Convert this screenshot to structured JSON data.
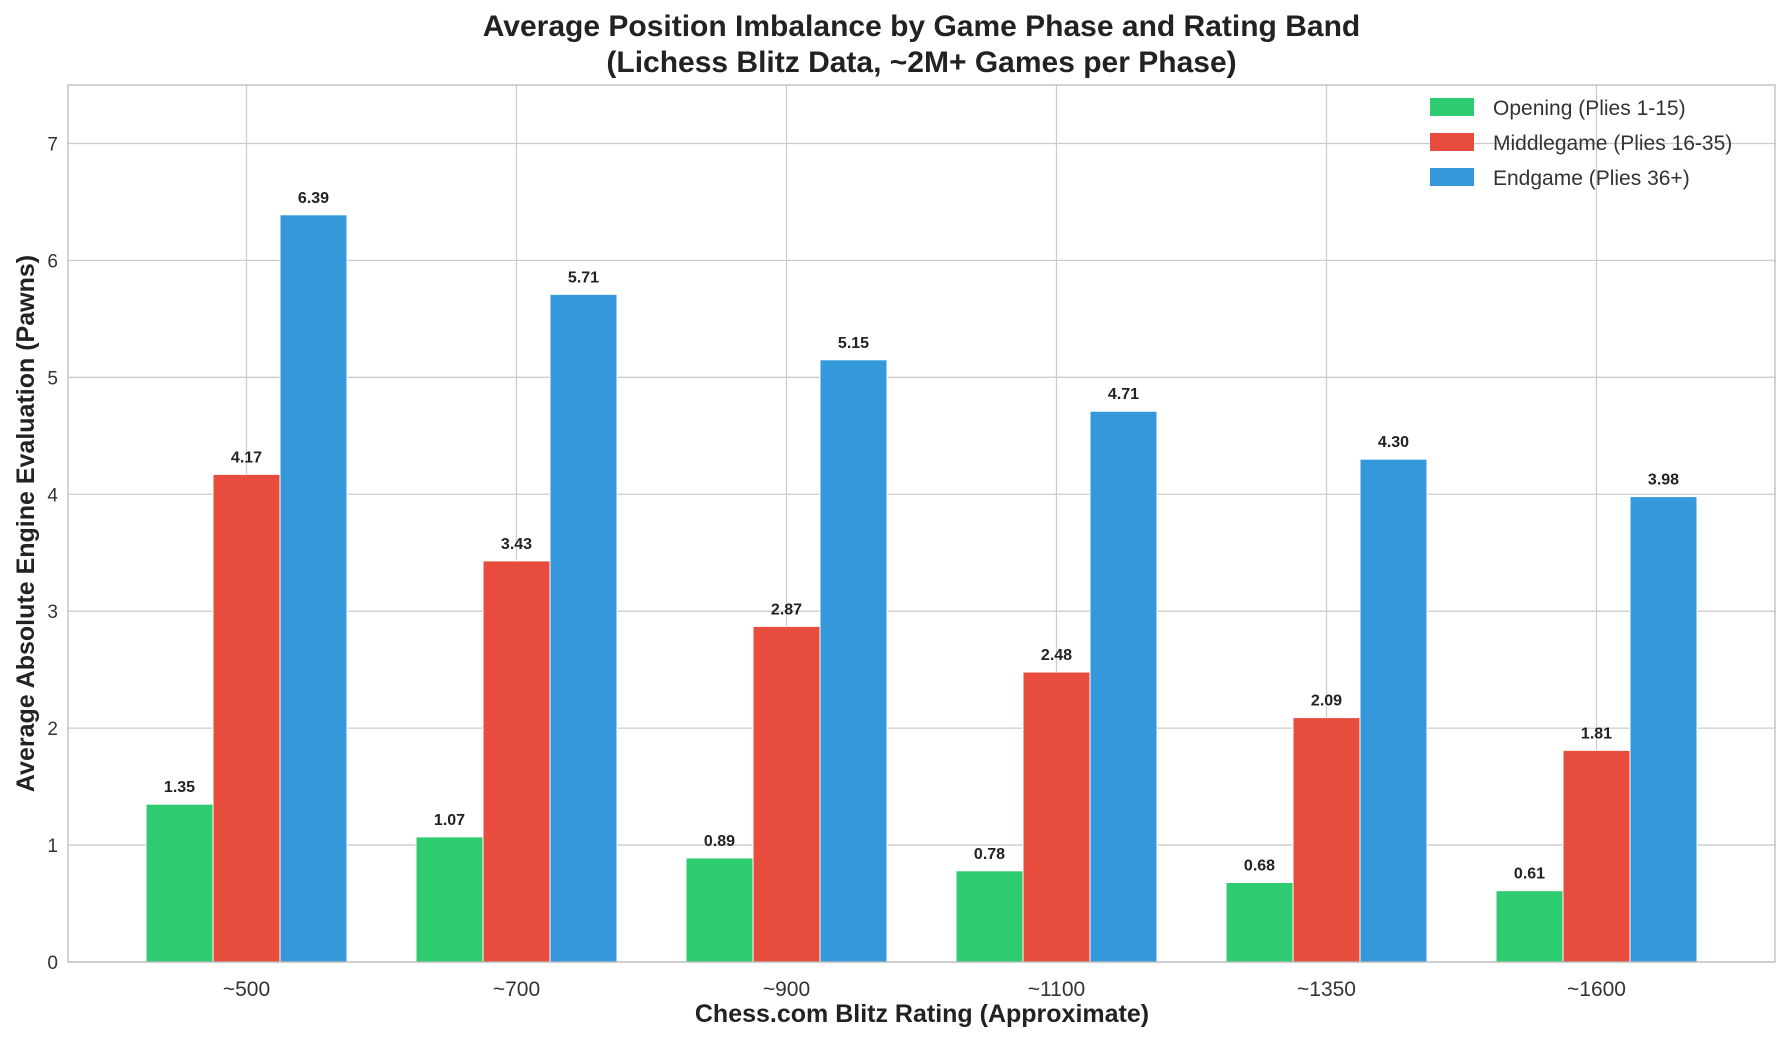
{
  "chart_data": {
    "type": "bar",
    "title": "Average Position Imbalance by Game Phase and Rating Band",
    "subtitle": "(Lichess Blitz Data, ~2M+ Games per Phase)",
    "xlabel": "Chess.com Blitz Rating (Approximate)",
    "ylabel": "Average Absolute Engine Evaluation (Pawns)",
    "categories": [
      "~500",
      "~700",
      "~900",
      "~1100",
      "~1350",
      "~1600"
    ],
    "ylim": [
      0,
      7.5
    ],
    "yticks": [
      0,
      1,
      2,
      3,
      4,
      5,
      6,
      7
    ],
    "grid": true,
    "legend_position": "top-right",
    "series": [
      {
        "name": "Opening (Plies 1-15)",
        "color": "#2ecc71",
        "values": [
          1.35,
          1.07,
          0.89,
          0.78,
          0.68,
          0.61
        ],
        "labels": [
          "1.35",
          "1.07",
          "0.89",
          "0.78",
          "0.68",
          "0.61"
        ]
      },
      {
        "name": "Middlegame (Plies 16-35)",
        "color": "#e74c3c",
        "values": [
          4.17,
          3.43,
          2.87,
          2.48,
          2.09,
          1.81
        ],
        "labels": [
          "4.17",
          "3.43",
          "2.87",
          "2.48",
          "2.09",
          "1.81"
        ]
      },
      {
        "name": "Endgame (Plies 36+)",
        "color": "#3498db",
        "values": [
          6.39,
          5.71,
          5.15,
          4.71,
          4.3,
          3.98
        ],
        "labels": [
          "6.39",
          "5.71",
          "5.15",
          "4.71",
          "4.30",
          "3.98"
        ]
      }
    ]
  }
}
